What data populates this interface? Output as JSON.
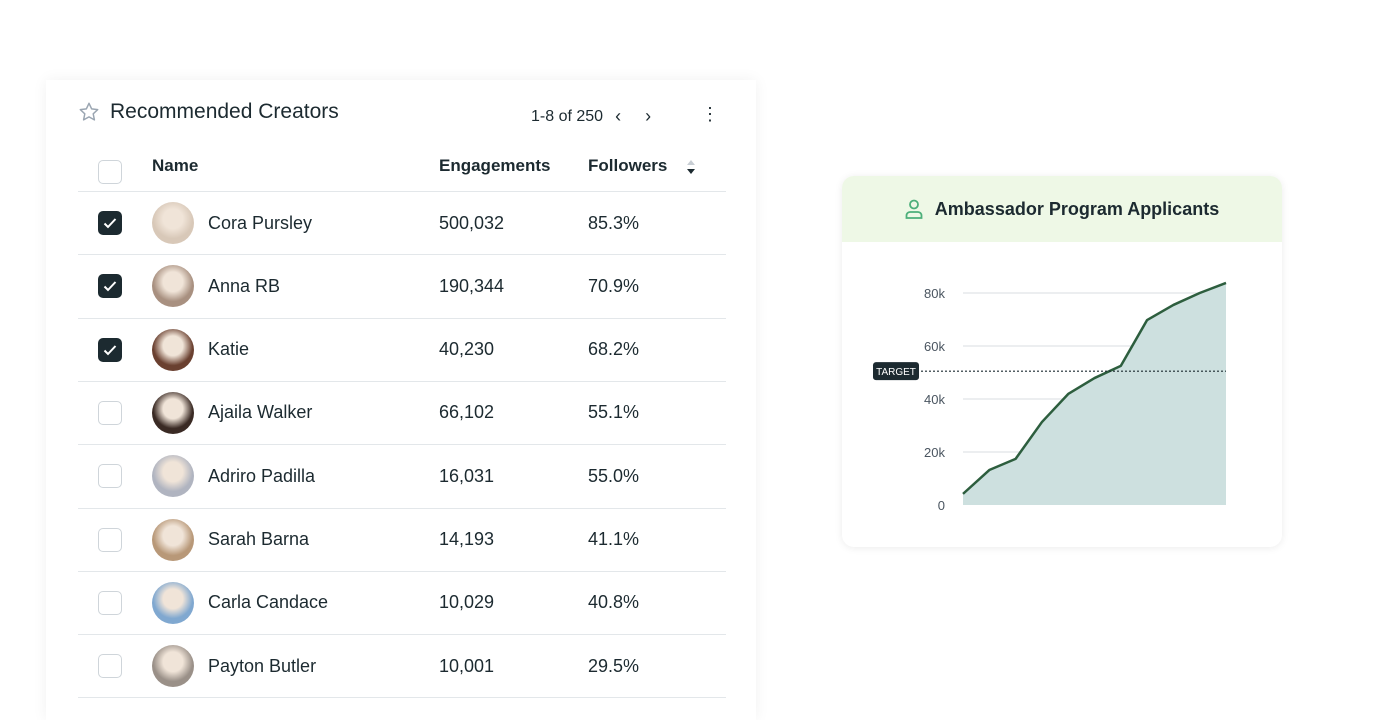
{
  "table": {
    "title": "Recommended Creators",
    "pagination": "1-8 of 250",
    "columns": {
      "name": "Name",
      "engagements": "Engagements",
      "followers": "Followers"
    },
    "rows": [
      {
        "name": "Cora Pursley",
        "engagements": "500,032",
        "followers": "85.3%",
        "checked": true,
        "avatar": "#d8c8b8"
      },
      {
        "name": "Anna RB",
        "engagements": "190,344",
        "followers": "70.9%",
        "checked": true,
        "avatar": "#a89080"
      },
      {
        "name": "Katie",
        "engagements": "40,230",
        "followers": "68.2%",
        "checked": true,
        "avatar": "#6a4030"
      },
      {
        "name": "Ajaila Walker",
        "engagements": "66,102",
        "followers": "55.1%",
        "checked": false,
        "avatar": "#3a2a24"
      },
      {
        "name": "Adriro Padilla",
        "engagements": "16,031",
        "followers": "55.0%",
        "checked": false,
        "avatar": "#b0b4c0"
      },
      {
        "name": "Sarah Barna",
        "engagements": "14,193",
        "followers": "41.1%",
        "checked": false,
        "avatar": "#b89878"
      },
      {
        "name": "Carla Candace",
        "engagements": "10,029",
        "followers": "40.8%",
        "checked": false,
        "avatar": "#80a8d0"
      },
      {
        "name": "Payton Butler",
        "engagements": "10,001",
        "followers": "29.5%",
        "checked": false,
        "avatar": "#9a9088"
      }
    ]
  },
  "chart_card": {
    "title": "Ambassador Program Applicants",
    "header_bg": "#eef8e6",
    "icon_color": "#4caf7a"
  },
  "chart_data": {
    "type": "area",
    "title": "Ambassador Program Applicants",
    "y": [
      4200,
      13200,
      17400,
      31300,
      41900,
      47900,
      52500,
      69800,
      75500,
      80000,
      83800
    ],
    "ylim": [
      0,
      80000
    ],
    "yticks": [
      "0",
      "20k",
      "40k",
      "60k",
      "80k"
    ],
    "ytick_values": [
      0,
      20000,
      40000,
      60000,
      80000
    ],
    "target": {
      "label": "TARGET",
      "value": 50500
    },
    "grid": true,
    "line_color": "#2d5e3e",
    "fill_color": "#cde0df"
  }
}
